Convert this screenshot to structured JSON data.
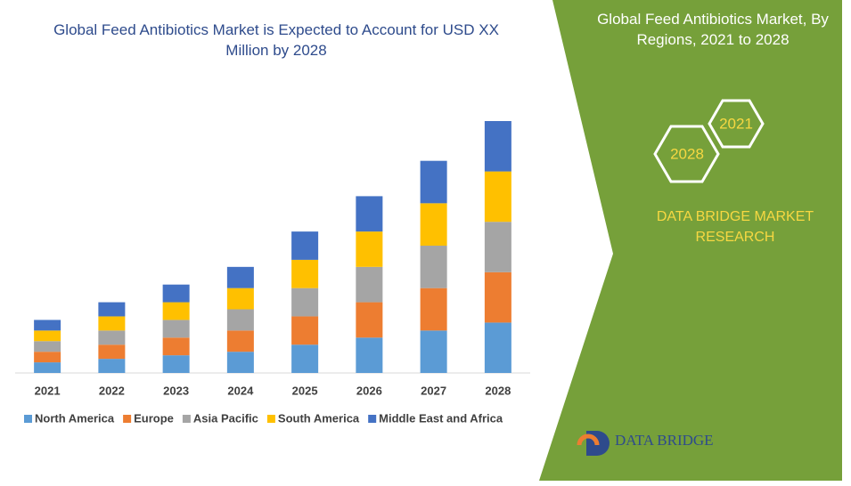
{
  "chart_data": {
    "type": "stacked-bar",
    "title": "Global Feed Antibiotics Market is Expected to Account for USD XX Million by 2028",
    "categories": [
      "2021",
      "2022",
      "2023",
      "2024",
      "2025",
      "2026",
      "2027",
      "2028"
    ],
    "series": [
      {
        "name": "North America",
        "color": "#5b9bd5",
        "values": [
          12,
          16,
          20,
          24,
          32,
          40,
          48,
          57
        ]
      },
      {
        "name": "Europe",
        "color": "#ed7d31",
        "values": [
          12,
          16,
          20,
          24,
          32,
          40,
          48,
          57
        ]
      },
      {
        "name": "Asia Pacific",
        "color": "#a5a5a5",
        "values": [
          12,
          16,
          20,
          24,
          32,
          40,
          48,
          57
        ]
      },
      {
        "name": "South America",
        "color": "#ffc000",
        "values": [
          12,
          16,
          20,
          24,
          32,
          40,
          48,
          57
        ]
      },
      {
        "name": "Middle East and Africa",
        "color": "#4472c4",
        "values": [
          12,
          16,
          20,
          24,
          32,
          40,
          48,
          57
        ]
      }
    ],
    "legend": "bottom"
  },
  "panel": {
    "title": "Global Feed Antibiotics Market, By Regions, 2021 to 2028",
    "hex_start": "2021",
    "hex_end": "2028",
    "brand": "DATA BRIDGE MARKET RESEARCH",
    "logo": "DATA BRIDGE"
  }
}
